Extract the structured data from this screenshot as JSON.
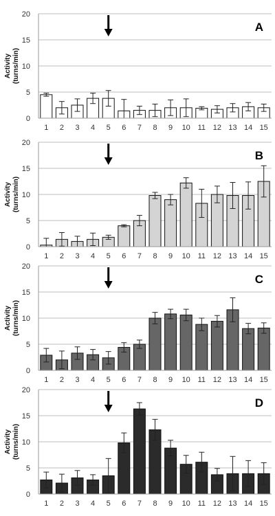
{
  "chart_data": [
    {
      "type": "bar",
      "panel_label": "A",
      "categories": [
        "1",
        "2",
        "3",
        "4",
        "5",
        "6",
        "7",
        "8",
        "9",
        "10",
        "11",
        "12",
        "13",
        "14",
        "15"
      ],
      "values": [
        4.5,
        2.0,
        2.5,
        3.8,
        3.8,
        1.4,
        1.5,
        1.5,
        2.0,
        2.0,
        1.9,
        1.7,
        2.0,
        2.2,
        2.0
      ],
      "errors": [
        0.3,
        1.2,
        1.2,
        1.0,
        1.5,
        2.2,
        0.8,
        1.2,
        1.5,
        1.7,
        0.3,
        0.7,
        0.8,
        0.8,
        0.7
      ],
      "ylabel": "Activity\n(turns/min)",
      "ylim": [
        0,
        20
      ],
      "yticks": [
        "0",
        "5",
        "10",
        "15",
        "20"
      ],
      "grid": true,
      "arrow_at": "5",
      "bar_color": "#ffffff"
    },
    {
      "type": "bar",
      "panel_label": "B",
      "categories": [
        "1",
        "2",
        "3",
        "4",
        "5",
        "6",
        "7",
        "8",
        "9",
        "10",
        "11",
        "12",
        "13",
        "14",
        "15"
      ],
      "values": [
        0.3,
        1.4,
        1.0,
        1.4,
        1.8,
        4.0,
        5.0,
        9.8,
        9.0,
        12.2,
        8.3,
        10.0,
        9.8,
        9.8,
        12.5
      ],
      "errors": [
        1.3,
        1.3,
        1.0,
        1.2,
        0.4,
        0.2,
        1.0,
        0.6,
        1.0,
        1.0,
        2.7,
        1.6,
        2.5,
        2.6,
        3.0
      ],
      "ylabel": "Activity\n(turns/min)",
      "ylim": [
        0,
        20
      ],
      "yticks": [
        "0",
        "5",
        "10",
        "15",
        "20"
      ],
      "grid": true,
      "arrow_at": "5",
      "bar_color": "#d4d4d4"
    },
    {
      "type": "bar",
      "panel_label": "C",
      "categories": [
        "1",
        "2",
        "3",
        "4",
        "5",
        "6",
        "7",
        "8",
        "9",
        "10",
        "11",
        "12",
        "13",
        "14",
        "15"
      ],
      "values": [
        2.9,
        2.0,
        3.3,
        3.0,
        2.4,
        4.4,
        5.0,
        10.0,
        10.8,
        10.6,
        8.8,
        9.4,
        11.6,
        8.0,
        8.1
      ],
      "errors": [
        1.3,
        1.7,
        1.2,
        1.0,
        1.2,
        0.9,
        0.8,
        1.1,
        0.9,
        1.1,
        1.2,
        1.1,
        2.3,
        1.0,
        1.0
      ],
      "ylabel": "Activity\n(turns/min)",
      "ylim": [
        0,
        20
      ],
      "yticks": [
        "0",
        "5",
        "10",
        "15",
        "20"
      ],
      "grid": true,
      "arrow_at": "5",
      "bar_color": "#666666"
    },
    {
      "type": "bar",
      "panel_label": "D",
      "categories": [
        "1",
        "2",
        "3",
        "4",
        "5",
        "6",
        "7",
        "8",
        "9",
        "10",
        "11",
        "12",
        "13",
        "14",
        "15"
      ],
      "values": [
        2.7,
        2.1,
        3.1,
        2.7,
        3.5,
        9.8,
        16.3,
        12.3,
        8.8,
        5.7,
        6.1,
        3.7,
        3.9,
        3.9,
        3.9
      ],
      "errors": [
        1.5,
        1.7,
        1.4,
        1.0,
        3.3,
        1.9,
        1.2,
        2.0,
        1.5,
        1.7,
        1.9,
        1.2,
        3.3,
        2.5,
        2.1
      ],
      "ylabel": "Activity\n(turns/min)",
      "ylim": [
        0,
        20
      ],
      "yticks": [
        "0",
        "5",
        "10",
        "15",
        "20"
      ],
      "grid": true,
      "arrow_at": "5",
      "bar_color": "#2b2b2b"
    }
  ]
}
